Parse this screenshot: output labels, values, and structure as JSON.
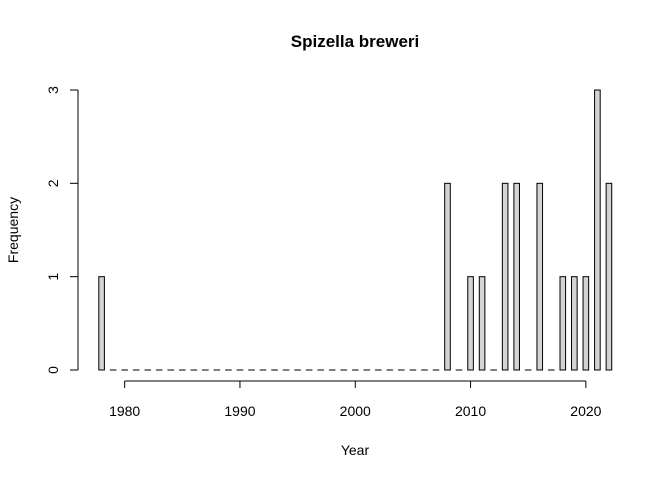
{
  "chart_data": {
    "type": "bar",
    "title": "Spizella breweri",
    "xlabel": "Year",
    "ylabel": "Frequency",
    "x": [
      1978,
      1979,
      1980,
      1981,
      1982,
      1983,
      1984,
      1985,
      1986,
      1987,
      1988,
      1989,
      1990,
      1991,
      1992,
      1993,
      1994,
      1995,
      1996,
      1997,
      1998,
      1999,
      2000,
      2001,
      2002,
      2003,
      2004,
      2005,
      2006,
      2007,
      2008,
      2009,
      2010,
      2011,
      2012,
      2013,
      2014,
      2015,
      2016,
      2017,
      2018,
      2019,
      2020,
      2021,
      2022
    ],
    "values": [
      1,
      0,
      0,
      0,
      0,
      0,
      0,
      0,
      0,
      0,
      0,
      0,
      0,
      0,
      0,
      0,
      0,
      0,
      0,
      0,
      0,
      0,
      0,
      0,
      0,
      0,
      0,
      0,
      0,
      0,
      2,
      0,
      1,
      1,
      0,
      2,
      2,
      0,
      2,
      0,
      1,
      1,
      1,
      3,
      2
    ],
    "xlim": [
      1978,
      2022
    ],
    "ylim": [
      0,
      3
    ],
    "x_ticks": [
      "1980",
      "1990",
      "2000",
      "2010",
      "2020"
    ],
    "y_ticks": [
      "0",
      "1",
      "2",
      "3"
    ],
    "grid": false,
    "bar_color": "#d3d3d3",
    "edge_color": "#000000"
  }
}
